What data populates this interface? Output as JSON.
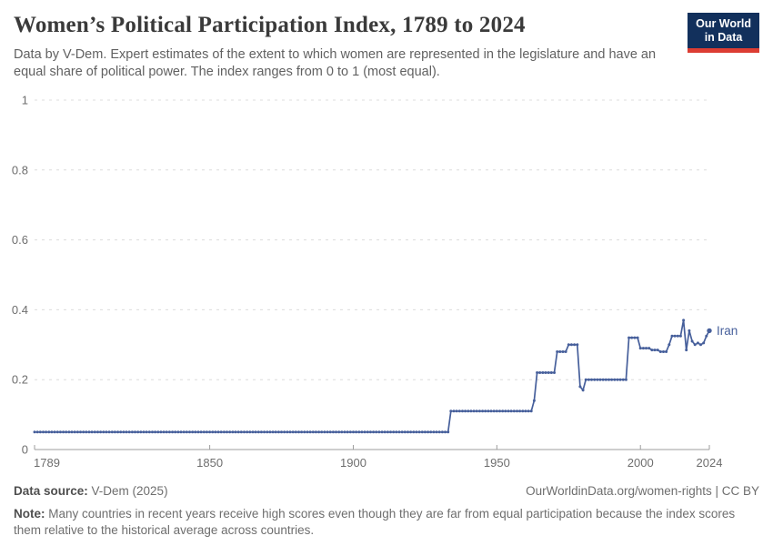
{
  "header": {
    "title": "Women’s Political Participation Index, 1789 to 2024",
    "subtitle": "Data by V-Dem. Expert estimates of the extent to which women are represented in the legislature and have an equal share of political power. The index ranges from 0 to 1 (most equal)."
  },
  "logo": {
    "line1": "Our World",
    "line2": "in Data",
    "bg_color": "#12305c",
    "accent_color": "#dc3d33"
  },
  "footer": {
    "datasource_label": "Data source:",
    "datasource_value": " V-Dem (2025)",
    "credit": "OurWorldinData.org/women-rights | CC BY",
    "note_label": "Note:",
    "note_text": " Many countries in recent years receive high scores even though they are far from equal participation because the index scores them relative to the historical average across countries."
  },
  "chart_data": {
    "type": "line",
    "title": "Women's Political Participation Index, 1789 to 2024",
    "xlabel": "",
    "ylabel": "",
    "x_range": [
      1789,
      2024
    ],
    "ylim": [
      0,
      1
    ],
    "x_ticks": [
      1789,
      1850,
      1900,
      1950,
      2000,
      2024
    ],
    "y_ticks": [
      0,
      0.2,
      0.4,
      0.6,
      0.8,
      1
    ],
    "y_tick_labels": [
      "0",
      "0.2",
      "0.4",
      "0.6",
      "0.8",
      "1"
    ],
    "grid": "horizontal-dashed",
    "legend_position": "end-of-line-label",
    "axis_color": "#9e9e9e",
    "grid_color": "#dcdcdc",
    "tick_label_color": "#6e6e6e",
    "series": [
      {
        "name": "Iran",
        "color": "#465f9b",
        "marker": "yearly-dots",
        "step_hold_until_next": true,
        "breakpoints": [
          [
            1789,
            0.05
          ],
          [
            1934,
            0.11
          ],
          [
            1963,
            0.14
          ],
          [
            1964,
            0.22
          ],
          [
            1971,
            0.28
          ],
          [
            1975,
            0.3
          ],
          [
            1979,
            0.18
          ],
          [
            1980,
            0.17
          ],
          [
            1981,
            0.2
          ],
          [
            1996,
            0.32
          ],
          [
            2000,
            0.29
          ],
          [
            2004,
            0.285
          ],
          [
            2007,
            0.28
          ],
          [
            2010,
            0.3
          ],
          [
            2011,
            0.325
          ],
          [
            2015,
            0.37
          ],
          [
            2016,
            0.285
          ],
          [
            2017,
            0.34
          ],
          [
            2018,
            0.31
          ],
          [
            2019,
            0.3
          ],
          [
            2020,
            0.305
          ],
          [
            2021,
            0.3
          ],
          [
            2022,
            0.305
          ],
          [
            2023,
            0.325
          ],
          [
            2024,
            0.34
          ]
        ]
      }
    ]
  }
}
